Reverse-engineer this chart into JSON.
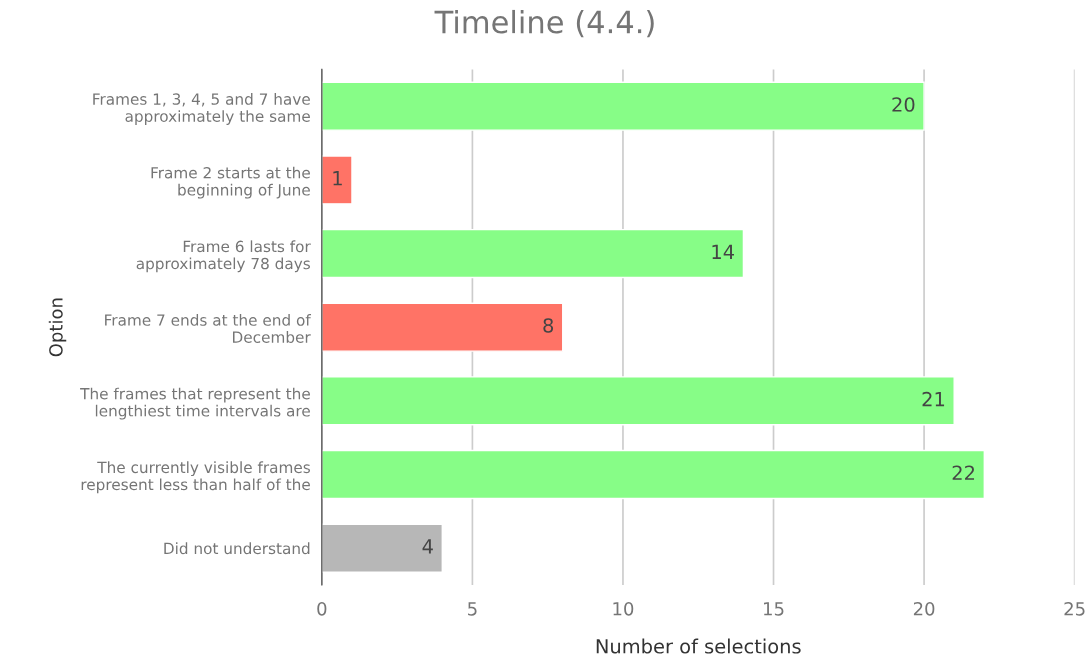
{
  "chart_data": {
    "type": "bar",
    "orientation": "horizontal",
    "title": "Timeline (4.4.)",
    "xlabel": "Number of selections",
    "ylabel": "Option",
    "categories": [
      "Frames 1, 3, 4, 5 and 7 have\napproximately the same",
      "Frame 2 starts at the\nbeginning of June",
      "Frame 6 lasts for\napproximately 78 days",
      "Frame 7 ends at the end of\nDecember",
      "The frames that represent the\nlengthiest time intervals are",
      "The currently visible frames\nrepresent less than half of the",
      "Did not understand"
    ],
    "values": [
      20,
      1,
      14,
      8,
      21,
      22,
      4
    ],
    "colors": [
      "#87fd87",
      "#ff7366",
      "#87fd87",
      "#ff7366",
      "#87fd87",
      "#87fd87",
      "#b7b7b7"
    ],
    "xlim": [
      0,
      25
    ],
    "xticks": [
      0,
      5,
      10,
      15,
      20,
      25
    ],
    "grid": "x",
    "data_labels": true,
    "legend": false
  }
}
